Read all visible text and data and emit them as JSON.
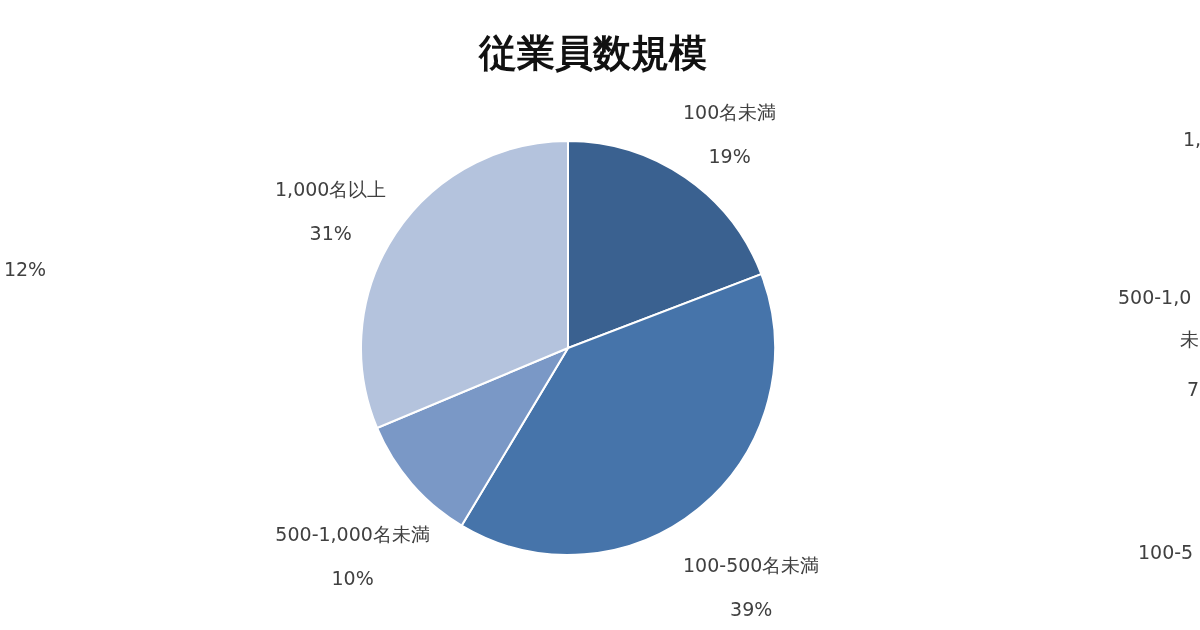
{
  "chart_data": {
    "type": "pie",
    "title": "従業員数規模",
    "categories": [
      "100名未満",
      "100-500名未満",
      "500-1,000名未満",
      "1,000名以上"
    ],
    "values": [
      19,
      39,
      10,
      31
    ],
    "value_labels": [
      "19%",
      "39%",
      "10%",
      "31%"
    ],
    "colors": [
      "#3a6190",
      "#4674aa",
      "#7a98c6",
      "#b4c3dd"
    ],
    "annotations": [
      "12%",
      "1,",
      "500-1,0",
      "未",
      "7",
      "100-5"
    ],
    "legend": false
  }
}
